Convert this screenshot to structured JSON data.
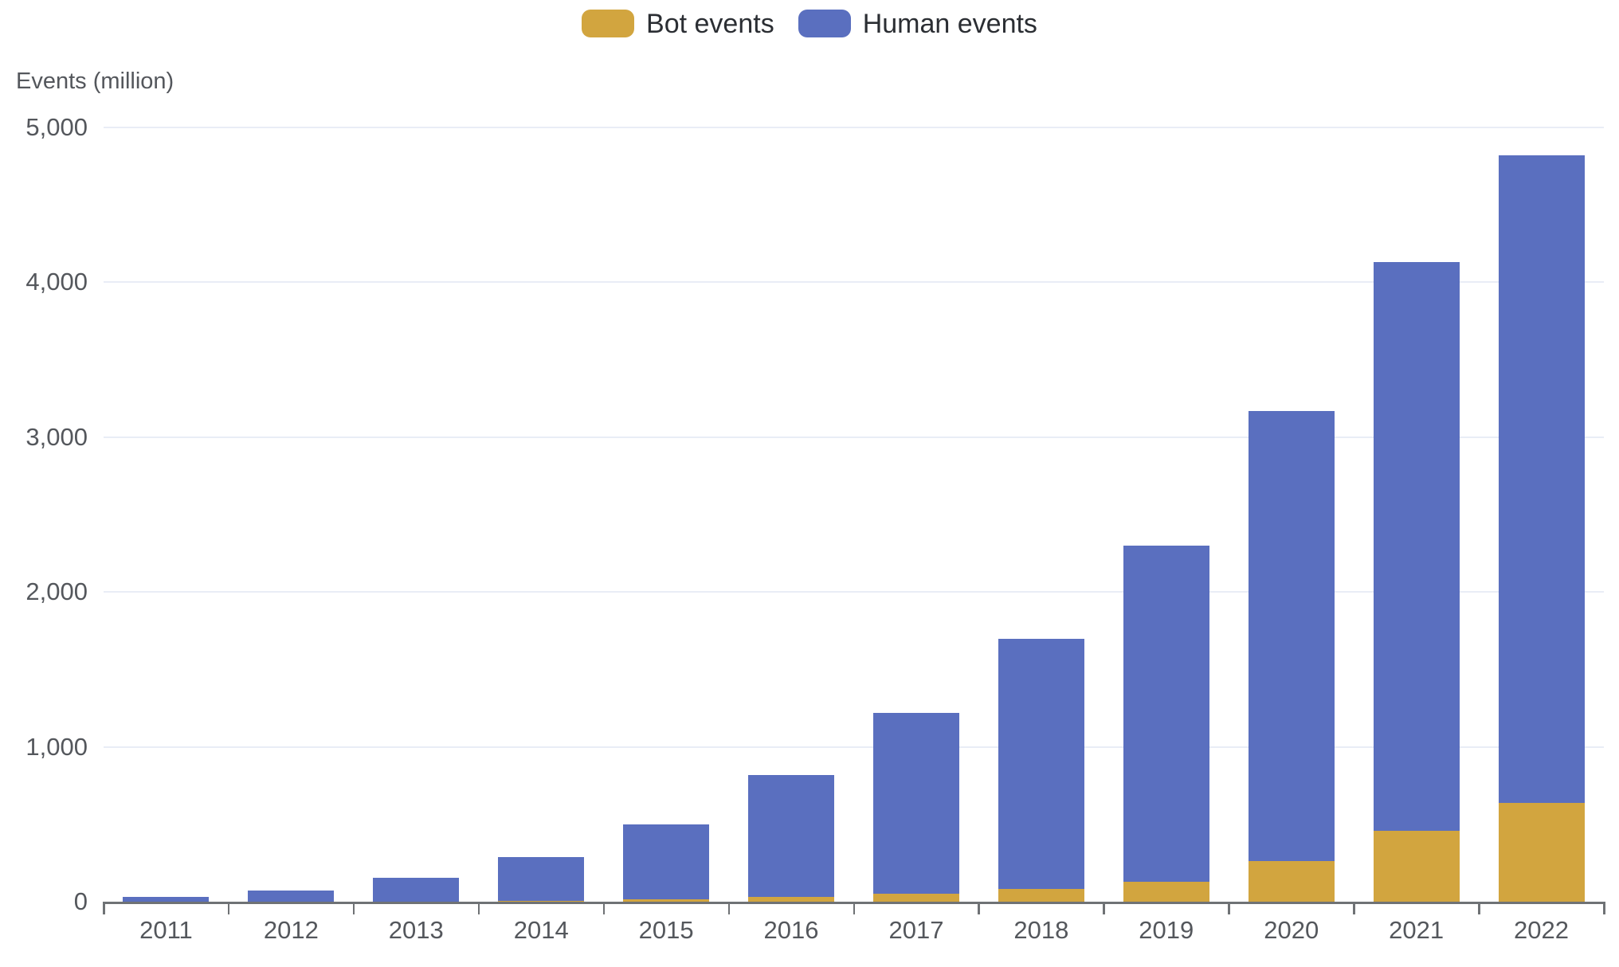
{
  "legend": {
    "items": [
      {
        "label": "Bot events",
        "color": "#d2a53f"
      },
      {
        "label": "Human events",
        "color": "#5a6fbf"
      }
    ]
  },
  "axis_title": "Events (million)",
  "chart_data": {
    "type": "bar",
    "stacked": true,
    "title": "",
    "ylabel": "Events (million)",
    "xlabel": "",
    "categories": [
      "2011",
      "2012",
      "2013",
      "2014",
      "2015",
      "2016",
      "2017",
      "2018",
      "2019",
      "2020",
      "2021",
      "2022"
    ],
    "series": [
      {
        "name": "Bot events",
        "color": "#d2a53f",
        "values": [
          0,
          0,
          0,
          5,
          15,
          30,
          50,
          80,
          130,
          260,
          460,
          640
        ]
      },
      {
        "name": "Human events",
        "color": "#5a6fbf",
        "values": [
          30,
          70,
          155,
          285,
          485,
          790,
          1170,
          1620,
          2170,
          2910,
          3670,
          4180
        ]
      }
    ],
    "totals": [
      30,
      70,
      155,
      290,
      500,
      820,
      1220,
      1700,
      2300,
      3170,
      4130,
      4820
    ],
    "ylim": [
      0,
      5000
    ],
    "yticks": [
      0,
      1000,
      2000,
      3000,
      4000,
      5000
    ],
    "grid": true,
    "legend_position": "top"
  },
  "colors": {
    "grid": "#e9edf6",
    "axis": "#6f7275",
    "tick_label": "#54575c",
    "legend_text": "#2b2e33",
    "background": "#ffffff"
  }
}
